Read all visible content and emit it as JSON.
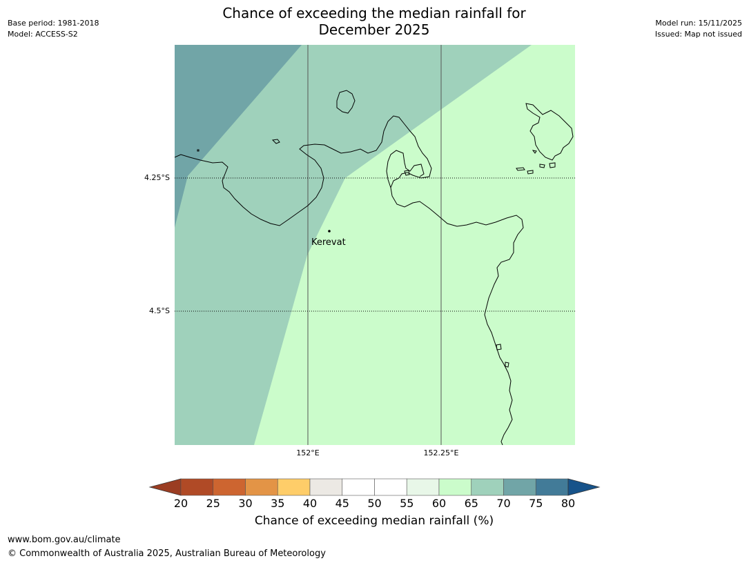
{
  "header": {
    "title_line1": "Chance of exceeding the median rainfall for",
    "title_line2": "December 2025",
    "base_period": "Base period: 1981-2018",
    "model": "Model: ACCESS-S2",
    "model_run": "Model run: 15/11/2025",
    "issued": "Issued: Map not issued"
  },
  "map": {
    "lat_labels": [
      "4.25°S",
      "4.5°S"
    ],
    "lon_labels": [
      "152°E",
      "152.25°E"
    ],
    "place_label": "Kerevat",
    "colors": {
      "band_65_70": "#9fd1bb",
      "band_70_75": "#71a5a7",
      "band_60_65": "#cbfccb",
      "coast": "#000000",
      "grid": "#555555"
    }
  },
  "colorbar": {
    "ticks": [
      "20",
      "25",
      "30",
      "35",
      "40",
      "45",
      "50",
      "55",
      "60",
      "65",
      "70",
      "75",
      "80"
    ],
    "colors": [
      "#b04a26",
      "#cd6530",
      "#e39446",
      "#fecd69",
      "#ece9e4",
      "#ffffff",
      "#ffffff",
      "#e8f7e8",
      "#cbfccb",
      "#9fd1bb",
      "#71a5a7",
      "#427b98"
    ],
    "under_color": "#9b3d22",
    "over_color": "#17538a",
    "label": "Chance of exceeding median rainfall (%)"
  },
  "footer": {
    "url": "www.bom.gov.au/climate",
    "copyright": "© Commonwealth of Australia 2025, Australian Bureau of Meteorology"
  }
}
